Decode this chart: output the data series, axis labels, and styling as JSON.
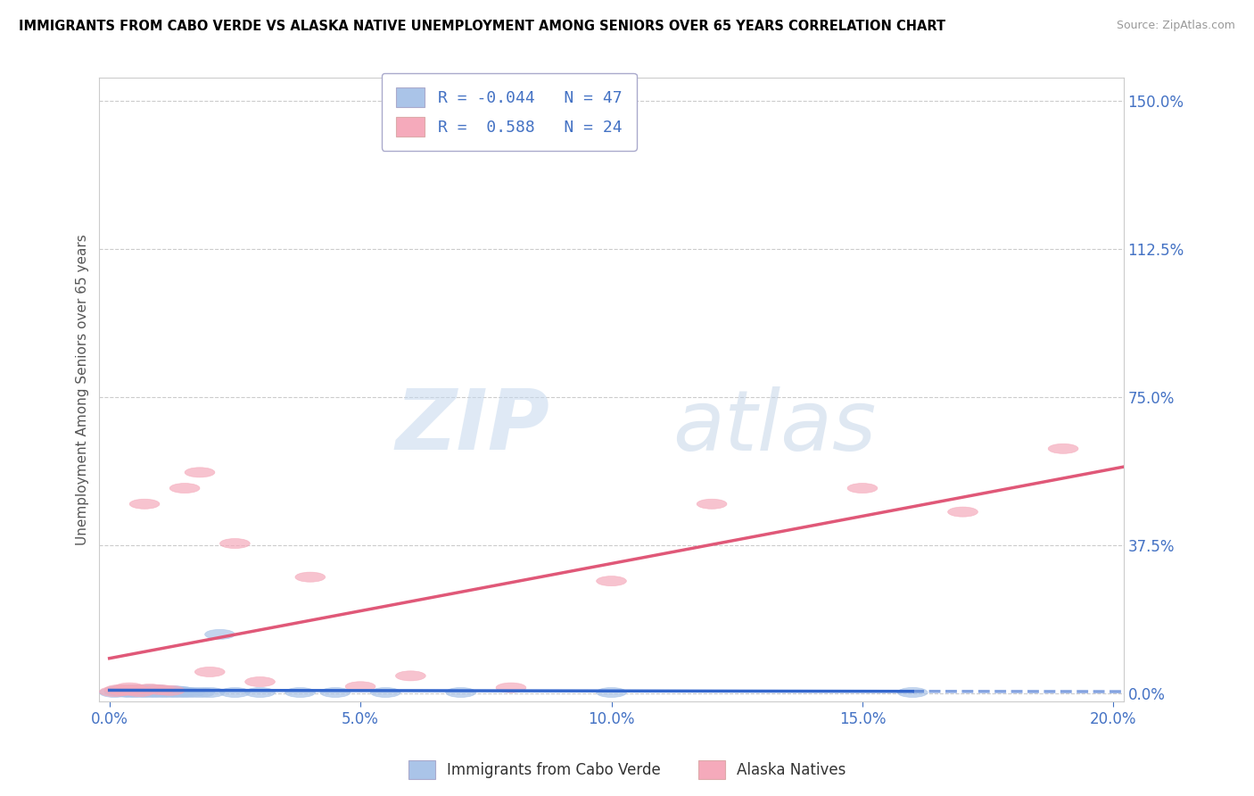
{
  "title": "IMMIGRANTS FROM CABO VERDE VS ALASKA NATIVE UNEMPLOYMENT AMONG SENIORS OVER 65 YEARS CORRELATION CHART",
  "source": "Source: ZipAtlas.com",
  "ylabel": "Unemployment Among Seniors over 65 years",
  "blue_R": -0.044,
  "blue_N": 47,
  "pink_R": 0.588,
  "pink_N": 24,
  "blue_color": "#aac4e8",
  "pink_color": "#f5aabb",
  "blue_line_color": "#3366cc",
  "pink_line_color": "#e05878",
  "legend_blue_label": "Immigrants from Cabo Verde",
  "legend_pink_label": "Alaska Natives",
  "watermark_zip": "ZIP",
  "watermark_atlas": "atlas",
  "ytick_vals": [
    0.0,
    0.375,
    0.75,
    1.125,
    1.5
  ],
  "ytick_labels": [
    "0.0%",
    "37.5%",
    "75.0%",
    "112.5%",
    "150.0%"
  ],
  "xtick_vals": [
    0.0,
    0.05,
    0.1,
    0.15,
    0.2
  ],
  "xtick_labels": [
    "0.0%",
    "5.0%",
    "10.0%",
    "15.0%",
    "20.0%"
  ],
  "blue_x": [
    0.001,
    0.002,
    0.002,
    0.003,
    0.003,
    0.003,
    0.004,
    0.004,
    0.004,
    0.005,
    0.005,
    0.005,
    0.006,
    0.006,
    0.006,
    0.007,
    0.007,
    0.007,
    0.008,
    0.008,
    0.009,
    0.009,
    0.009,
    0.01,
    0.01,
    0.01,
    0.011,
    0.011,
    0.012,
    0.012,
    0.013,
    0.013,
    0.014,
    0.014,
    0.015,
    0.016,
    0.018,
    0.02,
    0.022,
    0.025,
    0.03,
    0.038,
    0.045,
    0.055,
    0.07,
    0.1,
    0.16
  ],
  "blue_y": [
    0.003,
    0.005,
    0.008,
    0.004,
    0.007,
    0.01,
    0.003,
    0.006,
    0.009,
    0.004,
    0.007,
    0.01,
    0.003,
    0.006,
    0.009,
    0.004,
    0.007,
    0.01,
    0.003,
    0.006,
    0.004,
    0.007,
    0.01,
    0.003,
    0.006,
    0.009,
    0.004,
    0.007,
    0.003,
    0.006,
    0.004,
    0.007,
    0.003,
    0.006,
    0.004,
    0.003,
    0.003,
    0.003,
    0.15,
    0.003,
    0.003,
    0.003,
    0.003,
    0.003,
    0.003,
    0.003,
    0.003
  ],
  "pink_x": [
    0.001,
    0.002,
    0.003,
    0.004,
    0.005,
    0.006,
    0.007,
    0.008,
    0.01,
    0.012,
    0.015,
    0.018,
    0.02,
    0.025,
    0.03,
    0.04,
    0.05,
    0.06,
    0.08,
    0.1,
    0.12,
    0.15,
    0.17,
    0.19
  ],
  "pink_y": [
    0.005,
    0.01,
    0.008,
    0.015,
    0.01,
    0.005,
    0.48,
    0.012,
    0.01,
    0.008,
    0.52,
    0.56,
    0.055,
    0.38,
    0.03,
    0.295,
    0.018,
    0.045,
    0.015,
    0.285,
    0.48,
    0.52,
    0.46,
    0.62
  ]
}
